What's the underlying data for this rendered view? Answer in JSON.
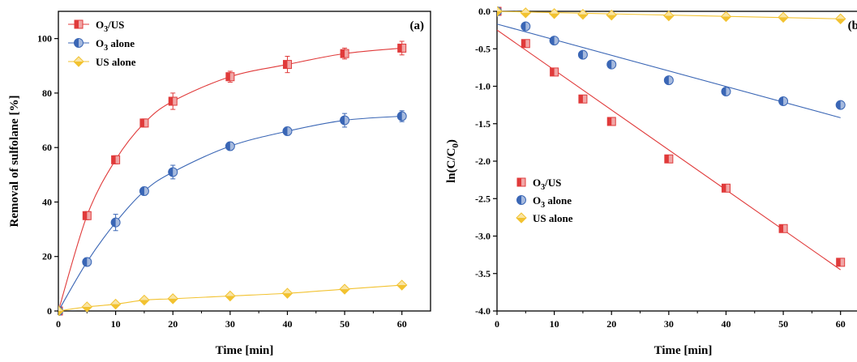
{
  "chart_data": [
    {
      "type": "line",
      "panel_label": "(a)",
      "xlabel": "Time [min]",
      "ylabel": "Removal of sulfolane [%]",
      "xlim": [
        0,
        65
      ],
      "ylim": [
        0,
        110
      ],
      "xticks": [
        0,
        10,
        20,
        30,
        40,
        50,
        60
      ],
      "yticks": [
        0,
        20,
        40,
        60,
        80,
        100
      ],
      "legend_position": "top-left",
      "x": [
        0,
        5,
        10,
        15,
        20,
        30,
        40,
        50,
        60
      ],
      "series": [
        {
          "name": "O3/US",
          "legend_main": "O",
          "legend_sub": "3",
          "legend_rest": "/US",
          "marker": "square",
          "color": "#e03a3a",
          "values": [
            0,
            35,
            55.5,
            69,
            77,
            86,
            90.5,
            94.5,
            96.5
          ],
          "errors": [
            0,
            1.5,
            1.5,
            1.5,
            3,
            2,
            3,
            2,
            2.5
          ]
        },
        {
          "name": "O3 alone",
          "legend_main": "O",
          "legend_sub": "3",
          "legend_rest": " alone",
          "marker": "circle",
          "color": "#3a66b5",
          "values": [
            0,
            18,
            32.5,
            44,
            51,
            60.5,
            66,
            70,
            71.5
          ],
          "errors": [
            0,
            1.5,
            3,
            1.5,
            2.5,
            1.5,
            1.5,
            2.5,
            2
          ]
        },
        {
          "name": "US alone",
          "legend_main": "US alone",
          "legend_sub": "",
          "legend_rest": "",
          "marker": "diamond",
          "color": "#f2c230",
          "values": [
            0,
            1.5,
            2.5,
            4,
            4.5,
            5.5,
            6.5,
            8,
            9.5
          ],
          "errors": [
            0,
            0,
            0,
            0,
            0,
            0,
            0,
            0,
            0
          ]
        }
      ]
    },
    {
      "type": "scatter",
      "panel_label": "(b)",
      "xlabel": "Time [min]",
      "ylabel_main": "ln(C/C",
      "ylabel_sub": "0",
      "ylabel_end": ")",
      "xlim": [
        0,
        65
      ],
      "ylim": [
        -4.0,
        0.0
      ],
      "xticks": [
        0,
        10,
        20,
        30,
        40,
        50,
        60
      ],
      "yticks": [
        "0.0",
        "-0.5",
        "-1.0",
        "-1.5",
        "-2.0",
        "-2.5",
        "-3.0",
        "-3.5",
        "-4.0"
      ],
      "legend_position": "center-left",
      "x": [
        0,
        5,
        10,
        15,
        20,
        30,
        40,
        50,
        60
      ],
      "series": [
        {
          "name": "O3/US",
          "legend_main": "O",
          "legend_sub": "3",
          "legend_rest": "/US",
          "marker": "square",
          "color": "#e03a3a",
          "values": [
            0,
            -0.43,
            -0.81,
            -1.17,
            -1.47,
            -1.97,
            -2.36,
            -2.9,
            -3.35
          ],
          "fit": [
            [
              0,
              -0.25
            ],
            [
              60,
              -3.45
            ]
          ]
        },
        {
          "name": "O3 alone",
          "legend_main": "O",
          "legend_sub": "3",
          "legend_rest": " alone",
          "marker": "circle",
          "color": "#3a66b5",
          "values": [
            0,
            -0.2,
            -0.39,
            -0.58,
            -0.71,
            -0.92,
            -1.07,
            -1.2,
            -1.25
          ],
          "fit": [
            [
              0,
              -0.17
            ],
            [
              60,
              -1.42
            ]
          ]
        },
        {
          "name": "US alone",
          "legend_main": "US alone",
          "legend_sub": "",
          "legend_rest": "",
          "marker": "diamond",
          "color": "#f2c230",
          "values": [
            0,
            -0.02,
            -0.03,
            -0.04,
            -0.05,
            -0.06,
            -0.07,
            -0.08,
            -0.1
          ],
          "fit": [
            [
              0,
              0.0
            ],
            [
              60,
              -0.1
            ]
          ]
        }
      ]
    }
  ]
}
